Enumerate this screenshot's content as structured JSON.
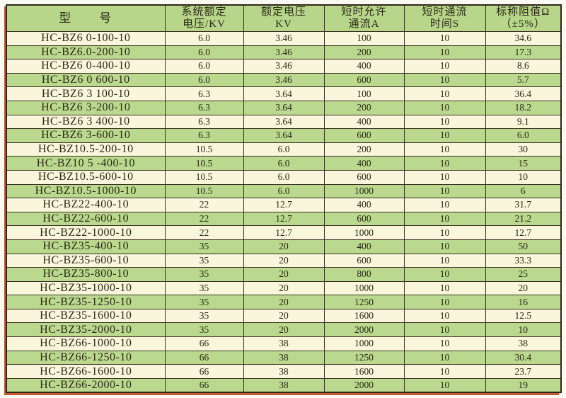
{
  "table": {
    "header_bg": "#b7d68a",
    "row_green": "#bad88e",
    "row_cream": "#f9f6dc",
    "grid_color": "#3a3120",
    "accent_border_color": "#c05a30",
    "text_color": "#2c2817",
    "column_ids": [
      "model",
      "system-voltage",
      "rated-voltage",
      "allow-current",
      "current-duration",
      "resistance"
    ],
    "headers": [
      {
        "label": "型　　号"
      },
      {
        "label": "系统额定\n电压/KV"
      },
      {
        "label": "额定电压\nKV"
      },
      {
        "label": "短时允许\n通流A"
      },
      {
        "label": "短时通流\n时间S"
      },
      {
        "label": "标称阻值Ω\n（±5%）"
      }
    ],
    "rows": [
      [
        "HC-BZ6 0-100-10",
        "6.0",
        "3.46",
        "100",
        "10",
        "34.6"
      ],
      [
        "HC-BZ6.0-200-10",
        "6.0",
        "3.46",
        "200",
        "10",
        "17.3"
      ],
      [
        "HC-BZ6 0-400-10",
        "6.0",
        "3.46",
        "400",
        "10",
        "8.6"
      ],
      [
        "HC-BZ6 0 600-10",
        "6.0",
        "3.46",
        "600",
        "10",
        "5.7"
      ],
      [
        "HC-BZ6 3 100-10",
        "6.3",
        "3.64",
        "100",
        "10",
        "36.4"
      ],
      [
        "HC-BZ6 3-200-10",
        "6.3",
        "3.64",
        "200",
        "10",
        "18.2"
      ],
      [
        "HC-BZ6 3 400-10",
        "6.3",
        "3.64",
        "400",
        "10",
        "9.1"
      ],
      [
        "HC-BZ6 3-600-10",
        "6.3",
        "3.64",
        "600",
        "10",
        "6.0"
      ],
      [
        "HC-BZ10.5-200-10",
        "10.5",
        "6.0",
        "200",
        "10",
        "30"
      ],
      [
        "HC-BZ10 5 -400-10",
        "10.5",
        "6.0",
        "400",
        "10",
        "15"
      ],
      [
        "HC-BZ10.5-600-10",
        "10.5",
        "6.0",
        "600",
        "10",
        "10"
      ],
      [
        "HC-BZ10.5-1000-10",
        "10.5",
        "6.0",
        "1000",
        "10",
        "6"
      ],
      [
        "HC-BZ22-400-10",
        "22",
        "12.7",
        "400",
        "10",
        "31.7"
      ],
      [
        "HC-BZ22-600-10",
        "22",
        "12.7",
        "600",
        "10",
        "21.2"
      ],
      [
        "HC-BZ22-1000-10",
        "22",
        "12.7",
        "1000",
        "10",
        "12.7"
      ],
      [
        "HC-BZ35-400-10",
        "35",
        "20",
        "400",
        "10",
        "50"
      ],
      [
        "HC-BZ35-600-10",
        "35",
        "20",
        "600",
        "10",
        "33.3"
      ],
      [
        "HC-BZ35-800-10",
        "35",
        "20",
        "800",
        "10",
        "25"
      ],
      [
        "HC-BZ35-1000-10",
        "35",
        "20",
        "1000",
        "10",
        "20"
      ],
      [
        "HC-BZ35-1250-10",
        "35",
        "20",
        "1250",
        "10",
        "16"
      ],
      [
        "HC-BZ35-1600-10",
        "35",
        "20",
        "1600",
        "10",
        "12.5"
      ],
      [
        "HC-BZ35-2000-10",
        "35",
        "20",
        "2000",
        "10",
        "10"
      ],
      [
        "HC-BZ66-1000-10",
        "66",
        "38",
        "1000",
        "10",
        "38"
      ],
      [
        "HC-BZ66-1250-10",
        "66",
        "38",
        "1250",
        "10",
        "30.4"
      ],
      [
        "HC-BZ66-1600-10",
        "66",
        "38",
        "1600",
        "10",
        "23.7"
      ],
      [
        "HC-BZ66-2000-10",
        "66",
        "38",
        "2000",
        "10",
        "19"
      ]
    ]
  }
}
